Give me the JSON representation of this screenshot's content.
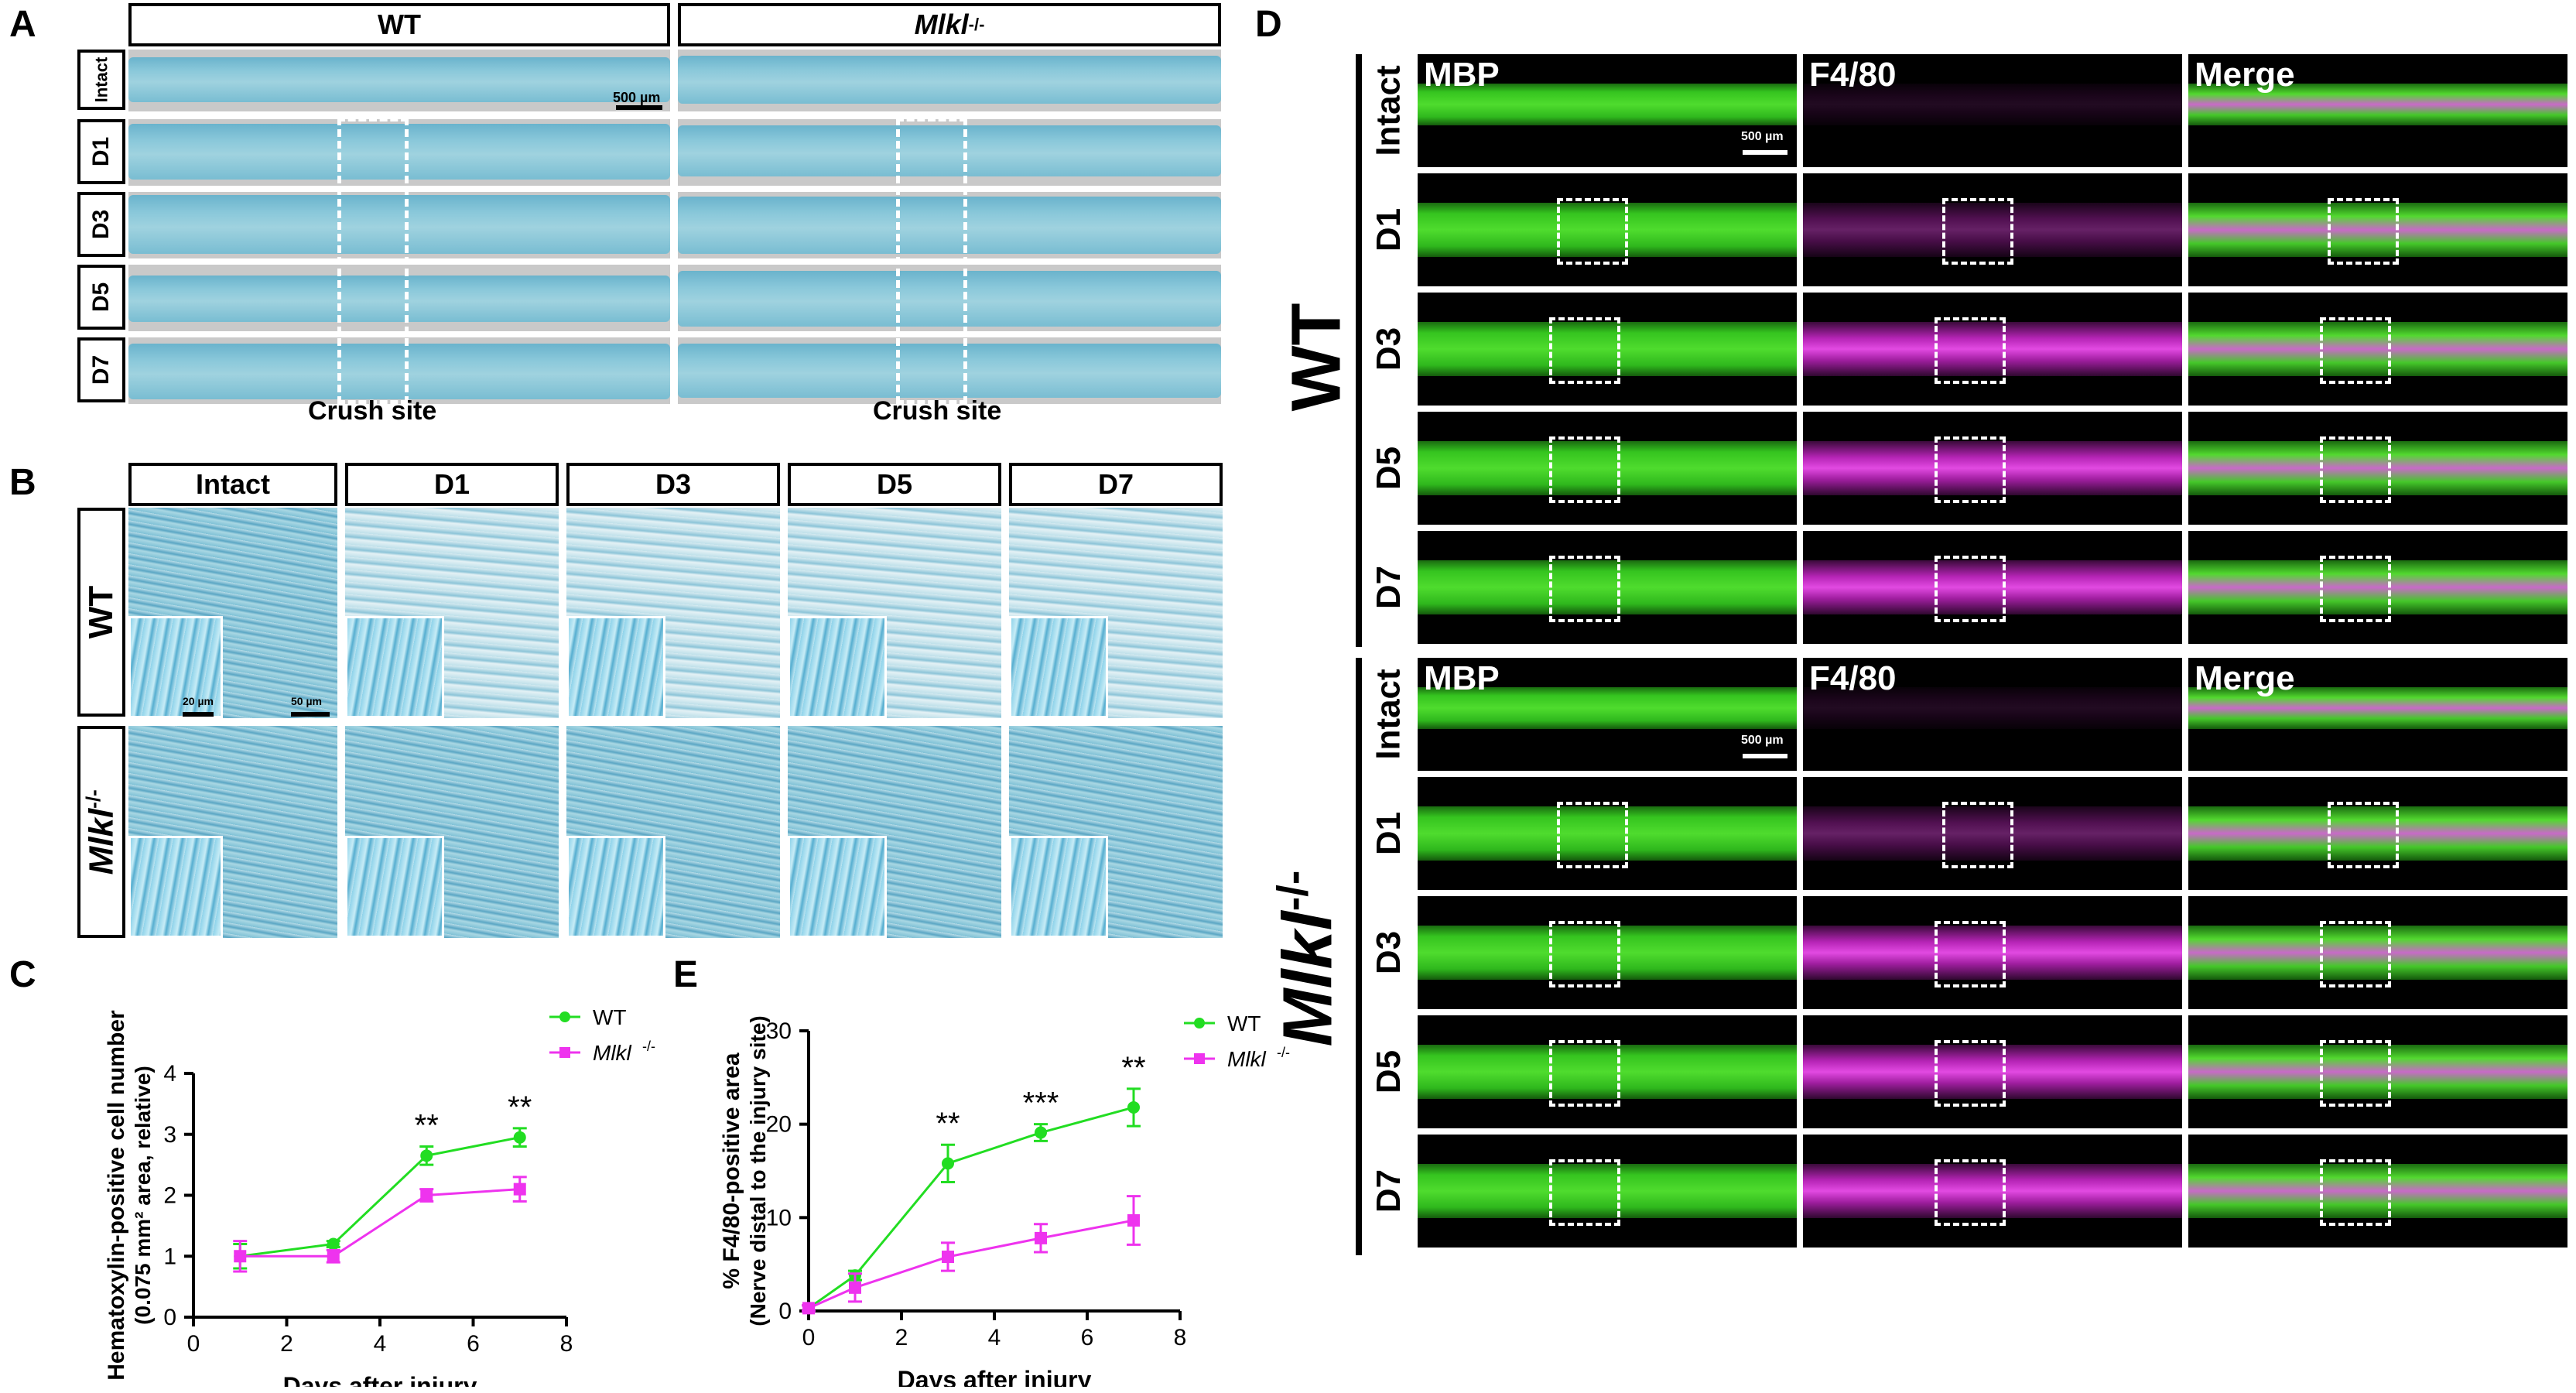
{
  "panel_letters": {
    "a": "A",
    "b": "B",
    "c": "C",
    "d": "D",
    "e": "E"
  },
  "panel_a": {
    "col_headers": [
      "WT",
      "Mlkl"
    ],
    "col_header_superscript": "-/-",
    "row_labels": [
      "Intact",
      "D1",
      "D3",
      "D5",
      "D7"
    ],
    "scale_bar": "500 µm",
    "crush_label": "Crush site"
  },
  "panel_b": {
    "col_headers": [
      "Intact",
      "D1",
      "D3",
      "D5",
      "D7"
    ],
    "row_labels": [
      "WT",
      "Mlkl"
    ],
    "row_label_superscript": "-/-",
    "scale_inset": "20 µm",
    "scale_main": "50 µm"
  },
  "panel_d": {
    "channel_titles": [
      "MBP",
      "F4/80",
      "Merge"
    ],
    "row_labels": [
      "Intact",
      "D1",
      "D3",
      "D5",
      "D7"
    ],
    "group_labels": [
      "WT",
      "Mlkl"
    ],
    "group_superscript": "-/-",
    "scale_bar": "500 µm"
  },
  "colors": {
    "wt": "#22dd22",
    "ko": "#ee33ee"
  },
  "chart_data": [
    {
      "type": "line",
      "panel": "C",
      "xlabel": "Days after injury",
      "ylabel_line1": "Hematoxylin-positive cell number",
      "ylabel_line2": "(0.075 mm² area, relative)",
      "xlim": [
        0,
        8
      ],
      "ylim": [
        0,
        4
      ],
      "xticks": [
        0,
        2,
        4,
        6,
        8
      ],
      "yticks": [
        0,
        1,
        2,
        3,
        4
      ],
      "x": [
        1,
        3,
        5,
        7
      ],
      "series": [
        {
          "name": "WT",
          "values": [
            1.0,
            1.2,
            2.65,
            2.95
          ],
          "errors": [
            0.2,
            0.05,
            0.15,
            0.15
          ]
        },
        {
          "name": "Mlkl",
          "superscript": "-/-",
          "values": [
            1.0,
            1.0,
            2.0,
            2.1
          ],
          "errors": [
            0.25,
            0.1,
            0.1,
            0.2
          ]
        }
      ],
      "annotations": [
        {
          "x": 5,
          "text": "**"
        },
        {
          "x": 7,
          "text": "**"
        }
      ]
    },
    {
      "type": "line",
      "panel": "E",
      "xlabel": "Days after injury",
      "ylabel_line1": "% F4/80-positive area",
      "ylabel_line2": "(Nerve distal to the injury site)",
      "xlim": [
        0,
        8
      ],
      "ylim": [
        0,
        30
      ],
      "xticks": [
        0,
        2,
        4,
        6,
        8
      ],
      "yticks": [
        0,
        10,
        20,
        30
      ],
      "x": [
        0,
        1,
        3,
        5,
        7
      ],
      "series": [
        {
          "name": "WT",
          "values": [
            0.3,
            3.8,
            15.8,
            19.1,
            21.8
          ],
          "errors": [
            0.3,
            0.5,
            2.0,
            0.9,
            2.0
          ]
        },
        {
          "name": "Mlkl",
          "superscript": "-/-",
          "values": [
            0.3,
            2.5,
            5.8,
            7.8,
            9.7
          ],
          "errors": [
            0.3,
            1.5,
            1.5,
            1.5,
            2.6
          ]
        }
      ],
      "annotations": [
        {
          "x": 3,
          "text": "**"
        },
        {
          "x": 5,
          "text": "***"
        },
        {
          "x": 7,
          "text": "**"
        }
      ]
    }
  ]
}
